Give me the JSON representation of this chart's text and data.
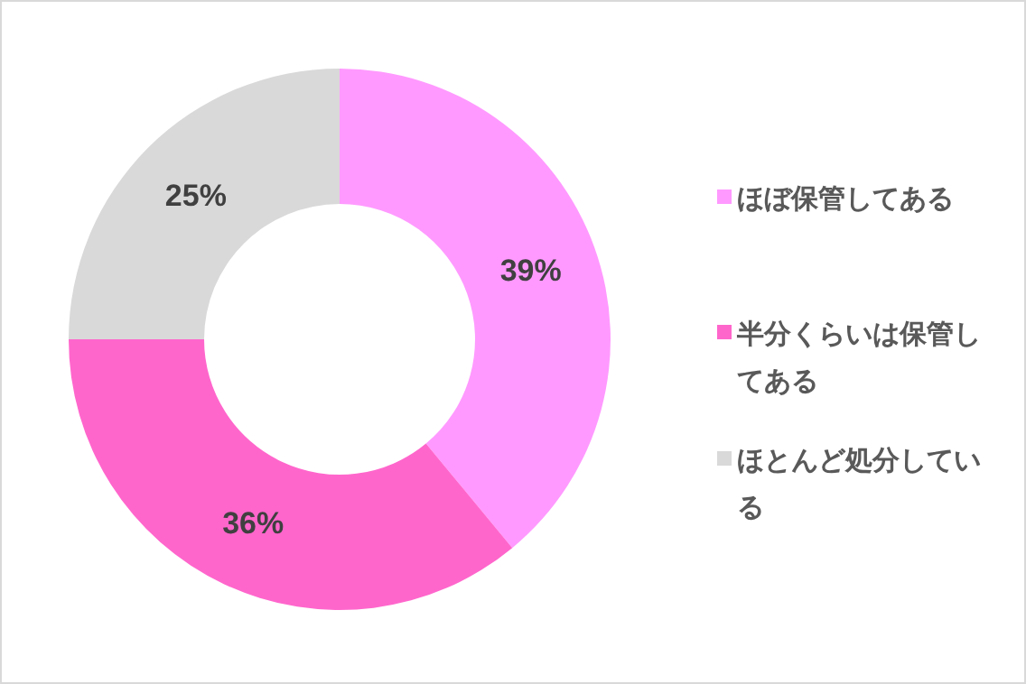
{
  "chart_data": {
    "type": "donut",
    "categories": [
      "ほぼ保管してある",
      "半分くらいは保管してある",
      "ほとんど処分している"
    ],
    "values": [
      39,
      36,
      25
    ],
    "colors": [
      "#ff99ff",
      "#ff66cc",
      "#d9d9d9"
    ],
    "value_labels": [
      "39%",
      "36%",
      "25%"
    ],
    "legend": "right"
  }
}
